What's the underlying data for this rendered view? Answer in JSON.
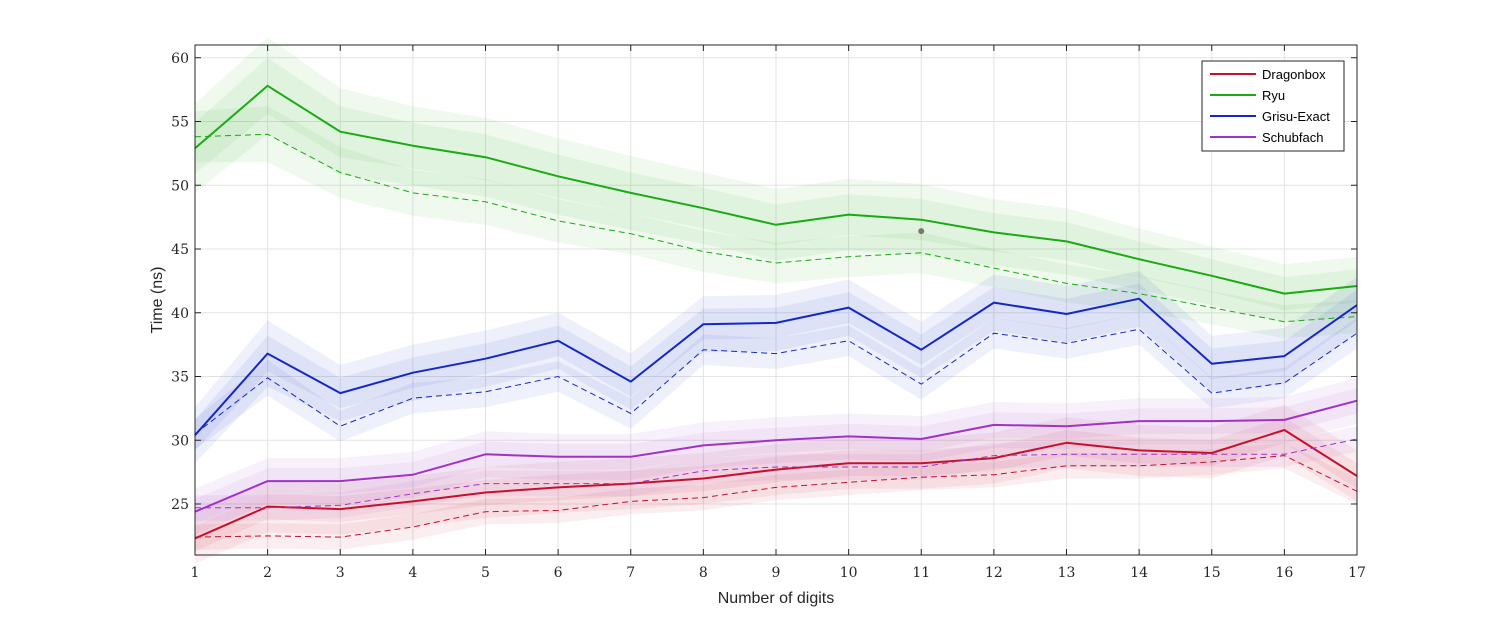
{
  "chart_data": {
    "type": "line",
    "title": "",
    "xlabel": "Number of digits",
    "ylabel": "Time (ns)",
    "x": [
      1,
      2,
      3,
      4,
      5,
      6,
      7,
      8,
      9,
      10,
      11,
      12,
      13,
      14,
      15,
      16,
      17
    ],
    "xlim": [
      1,
      17
    ],
    "ylim": [
      21,
      61
    ],
    "yticks": [
      25,
      30,
      35,
      40,
      45,
      50,
      55,
      60
    ],
    "grid": true,
    "legend_position": "top-right",
    "series": [
      {
        "name": "Dragonbox",
        "color": "#c8102e",
        "mean": [
          22.3,
          24.8,
          24.6,
          25.2,
          25.9,
          26.3,
          26.6,
          27.0,
          27.7,
          28.2,
          28.2,
          28.6,
          29.8,
          29.2,
          29.0,
          30.8,
          27.2
        ],
        "median": [
          22.4,
          22.5,
          22.4,
          23.2,
          24.4,
          24.5,
          25.2,
          25.5,
          26.3,
          26.7,
          27.1,
          27.3,
          28.0,
          28.0,
          28.3,
          28.8,
          26.0
        ],
        "band_inner": [
          1.0,
          1.0,
          1.0,
          1.0,
          1.0,
          1.0,
          1.0,
          1.0,
          1.0,
          1.0,
          1.0,
          1.0,
          1.0,
          1.0,
          1.0,
          1.0,
          1.0
        ],
        "band_outer": [
          2.0,
          2.0,
          2.0,
          2.0,
          2.0,
          2.0,
          2.0,
          2.0,
          2.0,
          2.0,
          2.0,
          2.0,
          2.0,
          2.0,
          2.0,
          2.0,
          2.0
        ]
      },
      {
        "name": "Ryu",
        "color": "#1aaa14",
        "mean": [
          52.9,
          57.8,
          54.2,
          53.1,
          52.2,
          50.7,
          49.4,
          48.2,
          46.9,
          47.7,
          47.3,
          46.3,
          45.6,
          44.2,
          42.9,
          41.5,
          42.1
        ],
        "median": [
          53.8,
          54.0,
          51.0,
          49.4,
          48.7,
          47.2,
          46.2,
          44.8,
          43.9,
          44.4,
          44.7,
          43.5,
          42.3,
          41.5,
          40.4,
          39.3,
          39.7
        ],
        "band_inner": [
          2.0,
          2.2,
          2.0,
          1.8,
          1.8,
          1.7,
          1.6,
          1.6,
          1.6,
          1.6,
          1.6,
          1.5,
          1.5,
          1.4,
          1.3,
          1.3,
          1.3
        ],
        "band_outer": [
          3.5,
          3.8,
          3.4,
          3.1,
          3.1,
          3.0,
          2.9,
          2.8,
          2.8,
          2.8,
          2.8,
          2.6,
          2.6,
          2.4,
          2.3,
          2.3,
          2.3
        ]
      },
      {
        "name": "Grisu-Exact",
        "color": "#1428c8",
        "mean": [
          30.4,
          36.8,
          33.7,
          35.3,
          36.4,
          37.8,
          34.6,
          39.1,
          39.2,
          40.4,
          37.1,
          40.8,
          39.9,
          41.1,
          36.0,
          36.6,
          40.6
        ],
        "median": [
          30.5,
          34.9,
          31.1,
          33.3,
          33.8,
          35.0,
          32.1,
          37.1,
          36.8,
          37.8,
          34.4,
          38.4,
          37.6,
          38.7,
          33.7,
          34.5,
          38.4
        ],
        "band_inner": [
          1.2,
          1.4,
          1.2,
          1.2,
          1.2,
          1.2,
          1.2,
          1.2,
          1.2,
          1.2,
          1.2,
          1.2,
          1.2,
          1.2,
          1.2,
          1.2,
          1.2
        ],
        "band_outer": [
          2.2,
          2.6,
          2.2,
          2.2,
          2.2,
          2.2,
          2.2,
          2.2,
          2.2,
          2.2,
          2.2,
          2.2,
          2.2,
          2.2,
          2.2,
          2.2,
          2.2
        ]
      },
      {
        "name": "Schubfach",
        "color": "#a032c8",
        "mean": [
          24.4,
          26.8,
          26.8,
          27.3,
          28.9,
          28.7,
          28.7,
          29.6,
          30.0,
          30.3,
          30.1,
          31.2,
          31.1,
          31.5,
          31.5,
          31.6,
          33.1
        ],
        "median": [
          24.7,
          24.7,
          24.9,
          25.8,
          26.6,
          26.6,
          26.6,
          27.6,
          27.9,
          27.9,
          27.9,
          28.8,
          28.9,
          28.9,
          28.9,
          28.9,
          30.1
        ],
        "band_inner": [
          1.0,
          1.0,
          1.0,
          1.0,
          1.0,
          1.0,
          1.0,
          1.0,
          1.0,
          1.0,
          1.0,
          1.0,
          1.0,
          1.0,
          1.0,
          1.0,
          1.0
        ],
        "band_outer": [
          1.8,
          1.8,
          1.8,
          1.8,
          1.8,
          1.8,
          1.8,
          1.8,
          1.8,
          1.8,
          1.8,
          1.8,
          1.8,
          1.8,
          1.8,
          1.8,
          1.8
        ]
      }
    ],
    "annotations": [
      {
        "type": "point",
        "x": 11,
        "y": 46.4,
        "color": "#7a7a6a"
      }
    ]
  }
}
